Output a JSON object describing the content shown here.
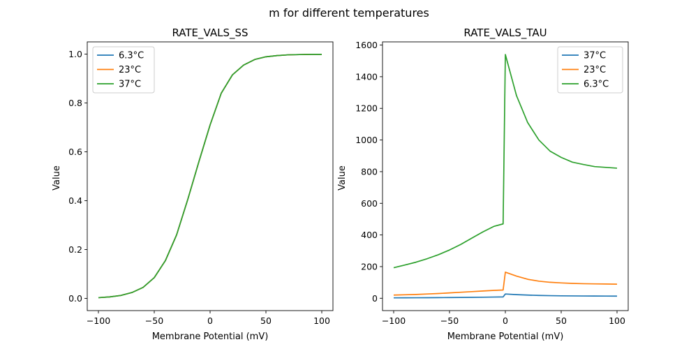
{
  "figure": {
    "suptitle": "m for different temperatures",
    "colors": {
      "blue": "#1f77b4",
      "orange": "#ff7f0e",
      "green": "#2ca02c"
    }
  },
  "chart_data": [
    {
      "type": "line",
      "title": "RATE_VALS_SS",
      "xlabel": "Membrane Potential (mV)",
      "ylabel": "Value",
      "xlim": [
        -110,
        110
      ],
      "ylim": [
        -0.05,
        1.05
      ],
      "xticks": [
        -100,
        -50,
        0,
        50,
        100
      ],
      "xtick_labels": [
        "−100",
        "−50",
        "0",
        "50",
        "100"
      ],
      "yticks": [
        0.0,
        0.2,
        0.4,
        0.6,
        0.8,
        1.0
      ],
      "ytick_labels": [
        "0.0",
        "0.2",
        "0.4",
        "0.6",
        "0.8",
        "1.0"
      ],
      "legend_position": "upper-left",
      "x": [
        -100,
        -90,
        -80,
        -70,
        -60,
        -50,
        -40,
        -30,
        -20,
        -10,
        0,
        10,
        20,
        30,
        40,
        50,
        60,
        70,
        80,
        90,
        100
      ],
      "series": [
        {
          "name": "6.3°C",
          "color": "#1f77b4",
          "values": [
            0.003,
            0.006,
            0.012,
            0.024,
            0.045,
            0.085,
            0.155,
            0.26,
            0.405,
            0.56,
            0.71,
            0.84,
            0.915,
            0.955,
            0.978,
            0.989,
            0.994,
            0.997,
            0.998,
            0.999,
            0.999
          ]
        },
        {
          "name": "23°C",
          "color": "#ff7f0e",
          "values": [
            0.003,
            0.006,
            0.012,
            0.024,
            0.045,
            0.085,
            0.155,
            0.26,
            0.405,
            0.56,
            0.71,
            0.84,
            0.915,
            0.955,
            0.978,
            0.989,
            0.994,
            0.997,
            0.998,
            0.999,
            0.999
          ]
        },
        {
          "name": "37°C",
          "color": "#2ca02c",
          "values": [
            0.003,
            0.006,
            0.012,
            0.024,
            0.045,
            0.085,
            0.155,
            0.26,
            0.405,
            0.56,
            0.71,
            0.84,
            0.915,
            0.955,
            0.978,
            0.989,
            0.994,
            0.997,
            0.998,
            0.999,
            0.999
          ]
        }
      ]
    },
    {
      "type": "line",
      "title": "RATE_VALS_TAU",
      "xlabel": "Membrane Potential (mV)",
      "ylabel": "Value",
      "xlim": [
        -110,
        110
      ],
      "ylim": [
        -78,
        1620
      ],
      "xticks": [
        -100,
        -50,
        0,
        50,
        100
      ],
      "xtick_labels": [
        "−100",
        "−50",
        "0",
        "50",
        "100"
      ],
      "yticks": [
        0,
        200,
        400,
        600,
        800,
        1000,
        1200,
        1400,
        1600
      ],
      "ytick_labels": [
        "0",
        "200",
        "400",
        "600",
        "800",
        "1000",
        "1200",
        "1400",
        "1600"
      ],
      "legend_position": "upper-right",
      "series": [
        {
          "name": "37°C",
          "color": "#1f77b4",
          "x": [
            -100,
            -90,
            -80,
            -70,
            -60,
            -50,
            -40,
            -30,
            -20,
            -10,
            -2,
            0,
            10,
            20,
            30,
            40,
            50,
            60,
            70,
            80,
            90,
            100
          ],
          "values": [
            2.7,
            3.0,
            3.3,
            3.7,
            4.1,
            4.6,
            5.2,
            5.9,
            6.7,
            7.7,
            8.6,
            27,
            23,
            20,
            18,
            16.5,
            15.5,
            14.8,
            14.3,
            14,
            13.8,
            13.6
          ]
        },
        {
          "name": "23°C",
          "color": "#ff7f0e",
          "x": [
            -100,
            -90,
            -80,
            -70,
            -60,
            -50,
            -40,
            -30,
            -20,
            -10,
            -2,
            0,
            10,
            20,
            30,
            40,
            50,
            60,
            70,
            80,
            90,
            100
          ],
          "values": [
            20,
            22,
            24,
            27,
            30,
            34,
            38,
            42,
            46,
            50,
            52,
            165,
            140,
            120,
            108,
            101,
            97,
            94,
            92,
            91,
            90,
            89
          ]
        },
        {
          "name": "6.3°C",
          "color": "#2ca02c",
          "x": [
            -100,
            -90,
            -80,
            -70,
            -60,
            -50,
            -40,
            -30,
            -20,
            -10,
            -2,
            0,
            10,
            20,
            30,
            40,
            50,
            60,
            70,
            80,
            90,
            100
          ],
          "values": [
            193,
            210,
            228,
            250,
            275,
            305,
            340,
            380,
            420,
            455,
            470,
            1540,
            1280,
            1110,
            1000,
            930,
            890,
            860,
            845,
            832,
            827,
            822
          ]
        }
      ]
    }
  ]
}
